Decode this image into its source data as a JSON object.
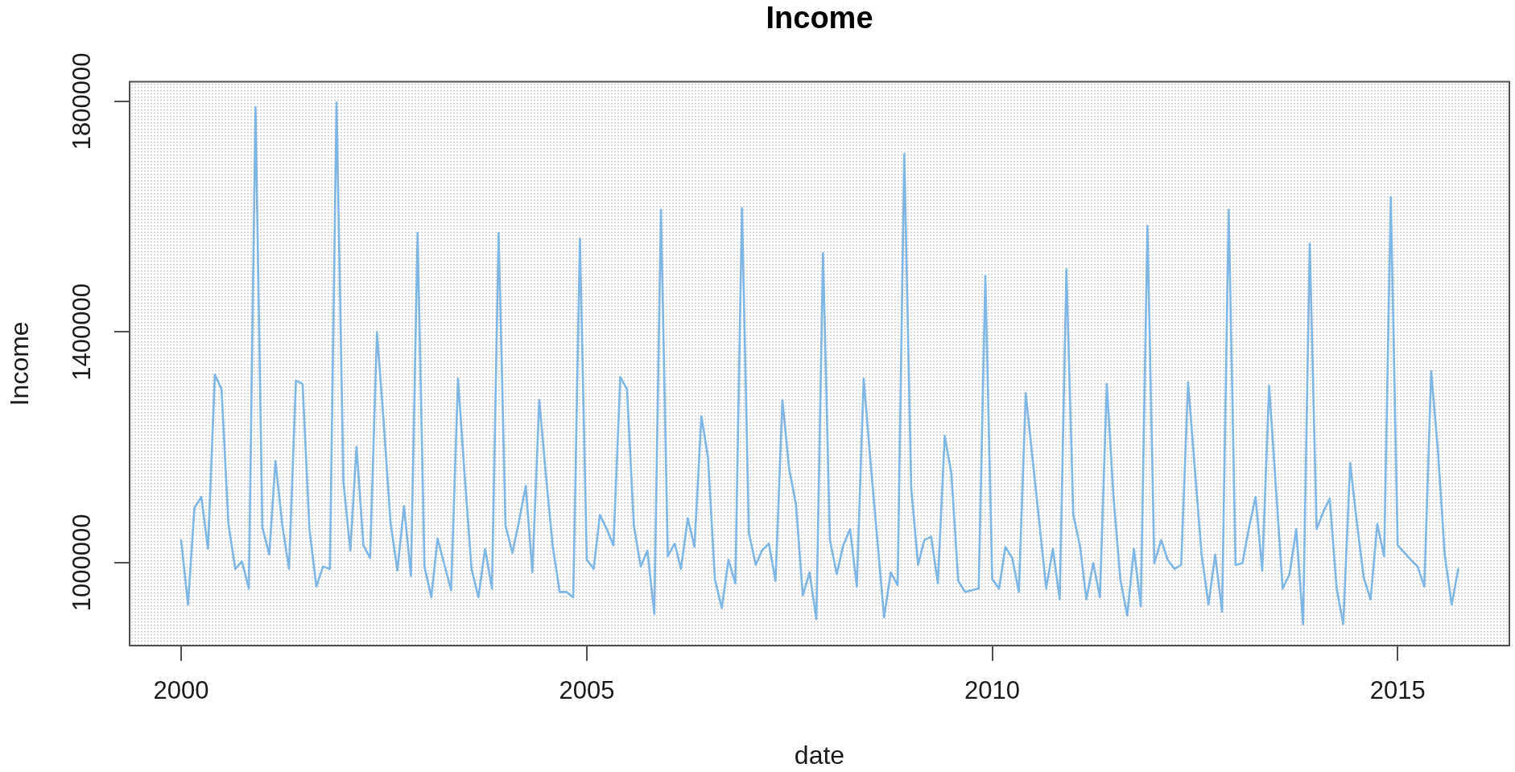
{
  "chart_data": {
    "type": "line",
    "title": "Income",
    "xlabel": "date",
    "ylabel": "Income",
    "x": [
      "2000-01",
      "2000-02",
      "2000-03",
      "2000-04",
      "2000-05",
      "2000-06",
      "2000-07",
      "2000-08",
      "2000-09",
      "2000-10",
      "2000-11",
      "2000-12",
      "2001-01",
      "2001-02",
      "2001-03",
      "2001-04",
      "2001-05",
      "2001-06",
      "2001-07",
      "2001-08",
      "2001-09",
      "2001-10",
      "2001-11",
      "2001-12",
      "2002-01",
      "2002-02",
      "2002-03",
      "2002-04",
      "2002-05",
      "2002-06",
      "2002-07",
      "2002-08",
      "2002-09",
      "2002-10",
      "2002-11",
      "2002-12",
      "2003-01",
      "2003-02",
      "2003-03",
      "2003-04",
      "2003-05",
      "2003-06",
      "2003-07",
      "2003-08",
      "2003-09",
      "2003-10",
      "2003-11",
      "2003-12",
      "2004-01",
      "2004-02",
      "2004-03",
      "2004-04",
      "2004-05",
      "2004-06",
      "2004-07",
      "2004-08",
      "2004-09",
      "2004-10",
      "2004-11",
      "2004-12",
      "2005-01",
      "2005-02",
      "2005-03",
      "2005-04",
      "2005-05",
      "2005-06",
      "2005-07",
      "2005-08",
      "2005-09",
      "2005-10",
      "2005-11",
      "2005-12",
      "2006-01",
      "2006-02",
      "2006-03",
      "2006-04",
      "2006-05",
      "2006-06",
      "2006-07",
      "2006-08",
      "2006-09",
      "2006-10",
      "2006-11",
      "2006-12",
      "2007-01",
      "2007-02",
      "2007-03",
      "2007-04",
      "2007-05",
      "2007-06",
      "2007-07",
      "2007-08",
      "2007-09",
      "2007-10",
      "2007-11",
      "2007-12",
      "2008-01",
      "2008-02",
      "2008-03",
      "2008-04",
      "2008-05",
      "2008-06",
      "2008-07",
      "2008-08",
      "2008-09",
      "2008-10",
      "2008-11",
      "2008-12",
      "2009-01",
      "2009-02",
      "2009-03",
      "2009-04",
      "2009-05",
      "2009-06",
      "2009-07",
      "2009-08",
      "2009-09",
      "2009-10",
      "2009-11",
      "2009-12",
      "2010-01",
      "2010-02",
      "2010-03",
      "2010-04",
      "2010-05",
      "2010-06",
      "2010-07",
      "2010-08",
      "2010-09",
      "2010-10",
      "2010-11",
      "2010-12",
      "2011-01",
      "2011-02",
      "2011-03",
      "2011-04",
      "2011-05",
      "2011-06",
      "2011-07",
      "2011-08",
      "2011-09",
      "2011-10",
      "2011-11",
      "2011-12",
      "2012-01",
      "2012-02",
      "2012-03",
      "2012-04",
      "2012-05",
      "2012-06",
      "2012-07",
      "2012-08",
      "2012-09",
      "2012-10",
      "2012-11",
      "2012-12",
      "2013-01",
      "2013-02",
      "2013-03",
      "2013-04",
      "2013-05",
      "2013-06",
      "2013-07",
      "2013-08",
      "2013-09",
      "2013-10",
      "2013-11",
      "2013-12",
      "2014-01",
      "2014-02",
      "2014-03",
      "2014-04",
      "2014-05",
      "2014-06",
      "2014-07",
      "2014-08",
      "2014-09",
      "2014-10",
      "2014-11",
      "2014-12",
      "2015-01",
      "2015-02",
      "2015-03",
      "2015-04",
      "2015-05",
      "2015-06",
      "2015-07",
      "2015-08",
      "2015-09",
      "2015-10"
    ],
    "values": [
      1039000,
      927000,
      1095000,
      1114000,
      1024000,
      1326000,
      1301000,
      1067000,
      989000,
      1002000,
      955000,
      1790000,
      1061000,
      1014000,
      1176000,
      1064000,
      989000,
      1316000,
      1310000,
      1058000,
      958000,
      993000,
      989000,
      1798000,
      1140000,
      1021000,
      1201000,
      1030000,
      1008000,
      1400000,
      1245000,
      1070000,
      986000,
      1098000,
      977000,
      1572000,
      993000,
      940000,
      1042000,
      996000,
      952000,
      1319000,
      1151000,
      989000,
      940000,
      1024000,
      955000,
      1572000,
      1064000,
      1017000,
      1070000,
      1133000,
      983000,
      1282000,
      1151000,
      1027000,
      949000,
      949000,
      940000,
      1562000,
      1005000,
      989000,
      1083000,
      1058000,
      1030000,
      1322000,
      1301000,
      1064000,
      993000,
      1021000,
      911000,
      1612000,
      1011000,
      1033000,
      989000,
      1077000,
      1027000,
      1254000,
      1182000,
      971000,
      921000,
      1005000,
      964000,
      1615000,
      1052000,
      996000,
      1021000,
      1033000,
      968000,
      1282000,
      1164000,
      1101000,
      943000,
      983000,
      902000,
      1537000,
      1039000,
      980000,
      1030000,
      1058000,
      958000,
      1319000,
      1179000,
      1042000,
      905000,
      983000,
      961000,
      1709000,
      1130000,
      996000,
      1039000,
      1045000,
      964000,
      1220000,
      1154000,
      968000,
      949000,
      952000,
      955000,
      1497000,
      971000,
      955000,
      1027000,
      1008000,
      949000,
      1294000,
      1182000,
      1070000,
      955000,
      1024000,
      936000,
      1509000,
      1083000,
      1027000,
      936000,
      999000,
      940000,
      1310000,
      1114000,
      971000,
      908000,
      1024000,
      924000,
      1584000,
      999000,
      1039000,
      1005000,
      989000,
      996000,
      1313000,
      1164000,
      1014000,
      927000,
      1014000,
      915000,
      1612000,
      996000,
      999000,
      1058000,
      1114000,
      986000,
      1307000,
      1133000,
      955000,
      980000,
      1058000,
      893000,
      1553000,
      1058000,
      1089000,
      1111000,
      955000,
      893000,
      1173000,
      1070000,
      974000,
      936000,
      1067000,
      1011000,
      1634000,
      1030000,
      1017000,
      1005000,
      993000,
      958000,
      1332000,
      1195000,
      1014000,
      927000,
      989000
    ],
    "color": "#80b6e4",
    "xlim": [
      "1999-05-14",
      "2016-05-18"
    ],
    "xticks": [
      "2000",
      "2005",
      "2010",
      "2015"
    ],
    "ylim": [
      856000,
      1834000
    ],
    "yticks": [
      1000000,
      1400000,
      1800000
    ],
    "grid": true
  }
}
